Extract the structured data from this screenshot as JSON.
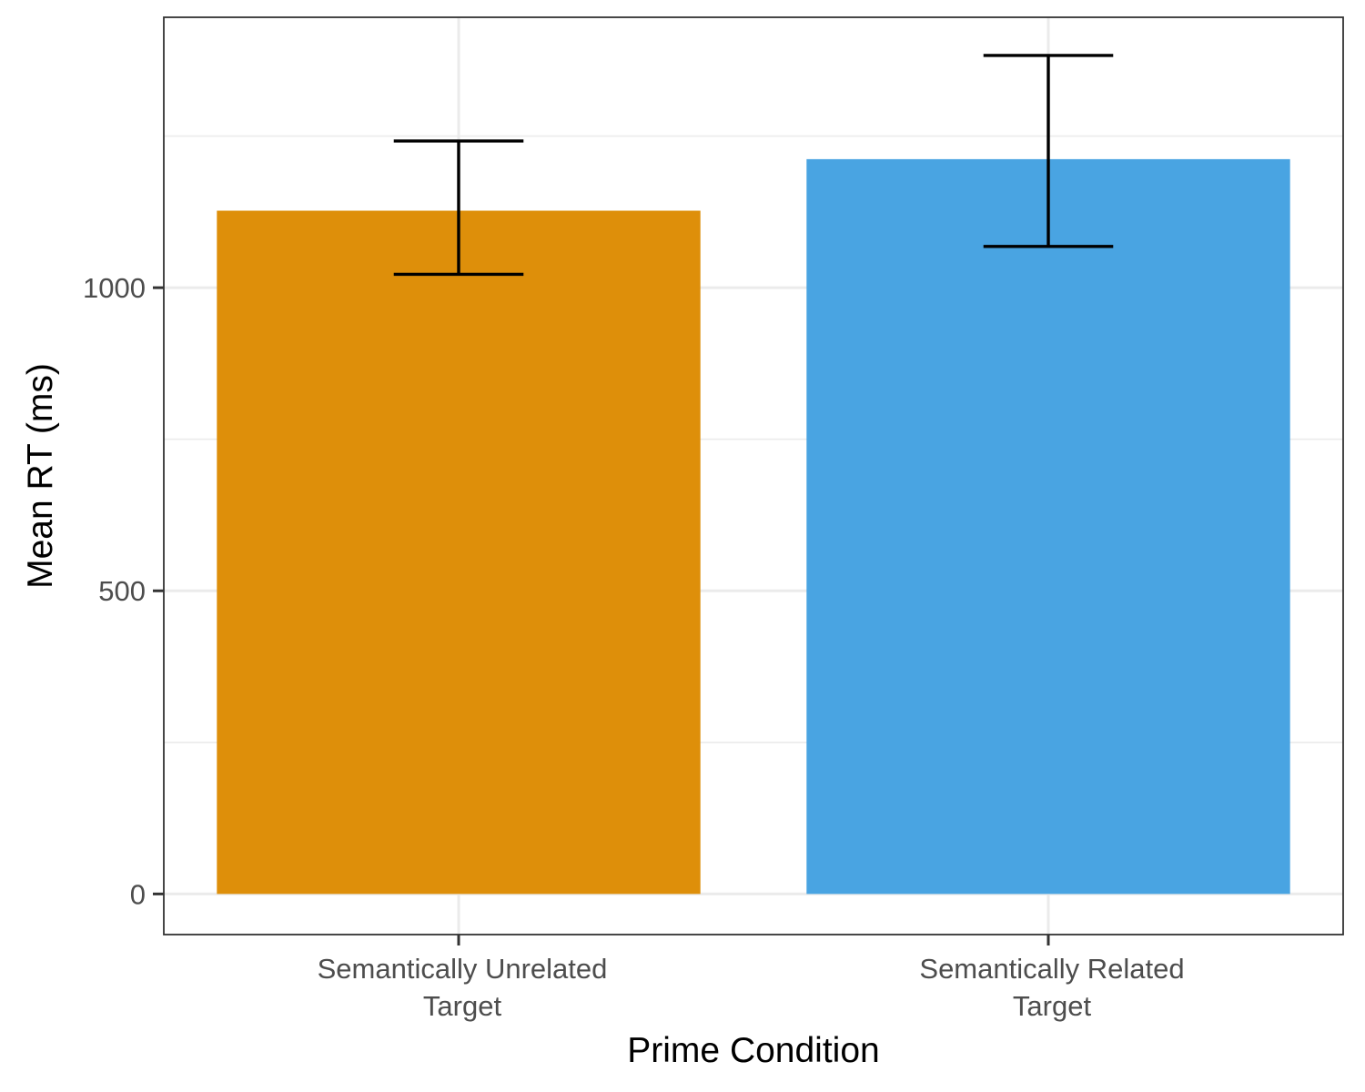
{
  "chart_data": {
    "type": "bar",
    "title": "",
    "xlabel": "Prime Condition",
    "ylabel": "Mean RT (ms)",
    "categories": [
      [
        "Semantically Unrelated",
        "Target"
      ],
      [
        "Semantically Related",
        "Target"
      ]
    ],
    "values": [
      1127,
      1212
    ],
    "error_bars": [
      {
        "low": 1022,
        "high": 1242
      },
      {
        "low": 1068,
        "high": 1383
      }
    ],
    "bar_colors": [
      "#DE8F0A",
      "#49A4E2"
    ],
    "ylim": [
      -67,
      1446
    ],
    "yticks": [
      0,
      500,
      1000
    ],
    "grid": true,
    "legend": "none"
  }
}
